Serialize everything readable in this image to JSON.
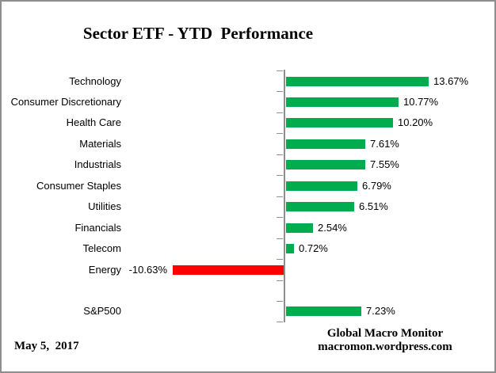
{
  "title": "Sector ETF - YTD  Performance",
  "footer": {
    "date": "May 5,  2017",
    "source_line1": "Global Macro Monitor",
    "source_line2": "macromon.wordpress.com"
  },
  "colors": {
    "positive_bar": "#00AC4E",
    "negative_bar": "#FF0000",
    "axis": "#8e8e8e",
    "frame_border": "#8e8e8e",
    "text": "#000000"
  },
  "chart_data": {
    "type": "bar",
    "orientation": "horizontal",
    "title": "Sector ETF - YTD  Performance",
    "xlabel": "",
    "ylabel": "",
    "value_unit": "%",
    "xlim_approx": [
      -15.5,
      20
    ],
    "grid": false,
    "legend": false,
    "value_labels_shown": true,
    "categories": [
      "Technology",
      "Consumer Discretionary",
      "Health Care",
      "Materials",
      "Industrials",
      "Consumer Staples",
      "Utilities",
      "Financials",
      "Telecom",
      "Energy",
      "",
      "S&P500"
    ],
    "values": [
      13.67,
      10.77,
      10.2,
      7.61,
      7.55,
      6.79,
      6.51,
      2.54,
      0.72,
      -10.63,
      null,
      7.23
    ],
    "rows": [
      {
        "label": "Technology",
        "value": 13.67,
        "display": "13.67%"
      },
      {
        "label": "Consumer Discretionary",
        "value": 10.77,
        "display": "10.77%"
      },
      {
        "label": "Health Care",
        "value": 10.2,
        "display": "10.20%"
      },
      {
        "label": "Materials",
        "value": 7.61,
        "display": "7.61%"
      },
      {
        "label": "Industrials",
        "value": 7.55,
        "display": "7.55%"
      },
      {
        "label": "Consumer Staples",
        "value": 6.79,
        "display": "6.79%"
      },
      {
        "label": "Utilities",
        "value": 6.51,
        "display": "6.51%"
      },
      {
        "label": "Financials",
        "value": 2.54,
        "display": "2.54%"
      },
      {
        "label": "Telecom",
        "value": 0.72,
        "display": "0.72%"
      },
      {
        "label": "Energy",
        "value": -10.63,
        "display": "-10.63%"
      },
      {
        "label": "",
        "value": null,
        "display": ""
      },
      {
        "label": "S&P500",
        "value": 7.23,
        "display": "7.23%"
      }
    ]
  }
}
